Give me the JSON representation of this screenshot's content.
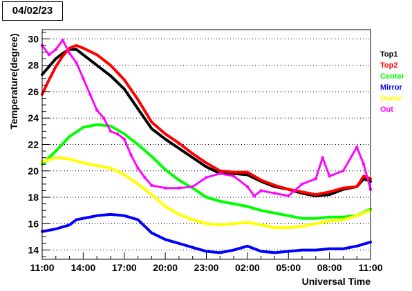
{
  "date_label": "04/02/23",
  "chart_data": {
    "type": "line",
    "xlabel": "Universal Time",
    "ylabel": "Temperature(degree)",
    "x_unit": "hours since 11:00",
    "x_tick_values": [
      0,
      3,
      6,
      9,
      12,
      15,
      18,
      21,
      24
    ],
    "x_tick_labels": [
      "11:00",
      "14:00",
      "17:00",
      "20:00",
      "23:00",
      "02:00",
      "05:00",
      "08:00",
      "11:00"
    ],
    "xlim": [
      0,
      24
    ],
    "ylim": [
      13.3,
      30.7
    ],
    "y_ticks": [
      14,
      16,
      18,
      20,
      22,
      24,
      26,
      28,
      30
    ],
    "grid": "horizontal dotted",
    "legend_placement": "right",
    "series": [
      {
        "name": "Top1",
        "color": "#000000",
        "points": [
          [
            0,
            27.3
          ],
          [
            0.5,
            27.9
          ],
          [
            1,
            28.5
          ],
          [
            1.5,
            28.9
          ],
          [
            2,
            29.2
          ],
          [
            2.5,
            29.2
          ],
          [
            3,
            28.8
          ],
          [
            4,
            28.0
          ],
          [
            5,
            27.2
          ],
          [
            6,
            26.2
          ],
          [
            7,
            24.7
          ],
          [
            8,
            23.2
          ],
          [
            9,
            22.4
          ],
          [
            10,
            21.7
          ],
          [
            11,
            21.0
          ],
          [
            12,
            20.3
          ],
          [
            13,
            19.8
          ],
          [
            14,
            19.8
          ],
          [
            15,
            19.7
          ],
          [
            16,
            19.2
          ],
          [
            17,
            18.8
          ],
          [
            18,
            18.6
          ],
          [
            19,
            18.3
          ],
          [
            20,
            18.1
          ],
          [
            21,
            18.2
          ],
          [
            22,
            18.6
          ],
          [
            23,
            18.8
          ],
          [
            23.5,
            19.4
          ],
          [
            24,
            19.2
          ]
        ]
      },
      {
        "name": "Top2",
        "color": "#ff0000",
        "points": [
          [
            0,
            25.8
          ],
          [
            0.5,
            26.9
          ],
          [
            1,
            27.9
          ],
          [
            1.5,
            28.7
          ],
          [
            2,
            29.3
          ],
          [
            2.5,
            29.5
          ],
          [
            3,
            29.3
          ],
          [
            4,
            28.8
          ],
          [
            5,
            28.0
          ],
          [
            6,
            26.9
          ],
          [
            7,
            25.4
          ],
          [
            8,
            23.7
          ],
          [
            9,
            22.8
          ],
          [
            10,
            22.1
          ],
          [
            11,
            21.3
          ],
          [
            12,
            20.6
          ],
          [
            13,
            20.0
          ],
          [
            14,
            19.9
          ],
          [
            15,
            19.9
          ],
          [
            16,
            19.3
          ],
          [
            17,
            18.9
          ],
          [
            18,
            18.6
          ],
          [
            19,
            18.4
          ],
          [
            20,
            18.2
          ],
          [
            21,
            18.4
          ],
          [
            22,
            18.7
          ],
          [
            23,
            18.8
          ],
          [
            23.5,
            19.6
          ],
          [
            24,
            19.4
          ]
        ]
      },
      {
        "name": "Center",
        "color": "#00ff00",
        "points": [
          [
            0,
            20.5
          ],
          [
            1,
            21.5
          ],
          [
            2,
            22.6
          ],
          [
            3,
            23.3
          ],
          [
            4,
            23.5
          ],
          [
            5,
            23.4
          ],
          [
            6,
            22.8
          ],
          [
            7,
            22.0
          ],
          [
            8,
            21.1
          ],
          [
            9,
            20.1
          ],
          [
            10,
            19.3
          ],
          [
            11,
            18.7
          ],
          [
            12,
            18.0
          ],
          [
            13,
            17.7
          ],
          [
            14,
            17.5
          ],
          [
            15,
            17.3
          ],
          [
            16,
            17.0
          ],
          [
            17,
            16.8
          ],
          [
            18,
            16.6
          ],
          [
            19,
            16.4
          ],
          [
            20,
            16.4
          ],
          [
            21,
            16.5
          ],
          [
            22,
            16.5
          ],
          [
            23,
            16.6
          ],
          [
            24,
            17.1
          ]
        ]
      },
      {
        "name": "Mirror",
        "color": "#0000ff",
        "points": [
          [
            0,
            15.4
          ],
          [
            1,
            15.6
          ],
          [
            2,
            15.9
          ],
          [
            2.5,
            16.3
          ],
          [
            3,
            16.4
          ],
          [
            4,
            16.6
          ],
          [
            5,
            16.7
          ],
          [
            6,
            16.6
          ],
          [
            7,
            16.3
          ],
          [
            8,
            15.3
          ],
          [
            9,
            14.8
          ],
          [
            10,
            14.5
          ],
          [
            11,
            14.2
          ],
          [
            12,
            13.9
          ],
          [
            13,
            13.8
          ],
          [
            14,
            14.0
          ],
          [
            15,
            14.3
          ],
          [
            16,
            13.9
          ],
          [
            17,
            13.8
          ],
          [
            18,
            13.9
          ],
          [
            19,
            14.0
          ],
          [
            20,
            14.0
          ],
          [
            21,
            14.1
          ],
          [
            22,
            14.1
          ],
          [
            23,
            14.3
          ],
          [
            24,
            14.6
          ]
        ]
      },
      {
        "name": "Dome",
        "color": "#ffff00",
        "points": [
          [
            0,
            20.7
          ],
          [
            1,
            21.0
          ],
          [
            2,
            20.9
          ],
          [
            3,
            20.6
          ],
          [
            4,
            20.4
          ],
          [
            5,
            20.2
          ],
          [
            6,
            19.7
          ],
          [
            7,
            19.0
          ],
          [
            8,
            18.2
          ],
          [
            9,
            17.3
          ],
          [
            10,
            16.7
          ],
          [
            11,
            16.3
          ],
          [
            12,
            16.0
          ],
          [
            13,
            15.9
          ],
          [
            14,
            16.0
          ],
          [
            15,
            16.1
          ],
          [
            16,
            15.9
          ],
          [
            17,
            15.7
          ],
          [
            18,
            15.7
          ],
          [
            19,
            15.8
          ],
          [
            20,
            16.0
          ],
          [
            21,
            16.2
          ],
          [
            22,
            16.3
          ],
          [
            23,
            16.6
          ],
          [
            24,
            17.0
          ]
        ]
      },
      {
        "name": "Out",
        "color": "#ff00ff",
        "points": [
          [
            0,
            29.5
          ],
          [
            0.5,
            28.8
          ],
          [
            1,
            29.2
          ],
          [
            1.5,
            29.9
          ],
          [
            2,
            28.9
          ],
          [
            2.5,
            28.2
          ],
          [
            3,
            27.0
          ],
          [
            3.5,
            25.8
          ],
          [
            4,
            24.6
          ],
          [
            4.5,
            24.0
          ],
          [
            5,
            23.0
          ],
          [
            5.5,
            22.8
          ],
          [
            6,
            22.4
          ],
          [
            6.5,
            21.2
          ],
          [
            7,
            20.2
          ],
          [
            7.5,
            19.5
          ],
          [
            8,
            18.9
          ],
          [
            9,
            18.7
          ],
          [
            10,
            18.7
          ],
          [
            11,
            18.8
          ],
          [
            12,
            19.5
          ],
          [
            13,
            19.8
          ],
          [
            14,
            19.6
          ],
          [
            15,
            18.8
          ],
          [
            15.5,
            18.1
          ],
          [
            16,
            18.5
          ],
          [
            17,
            18.3
          ],
          [
            18,
            18.1
          ],
          [
            19,
            19.0
          ],
          [
            20,
            19.4
          ],
          [
            20.5,
            21.0
          ],
          [
            21,
            19.6
          ],
          [
            22,
            20.0
          ],
          [
            23,
            21.8
          ],
          [
            23.5,
            20.5
          ],
          [
            24,
            18.6
          ]
        ]
      }
    ]
  }
}
